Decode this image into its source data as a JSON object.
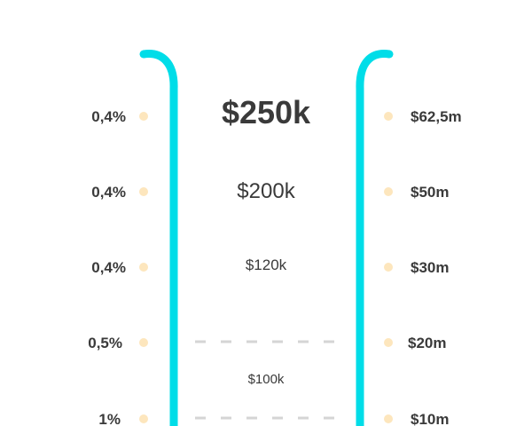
{
  "colors": {
    "rail": "#00dde8",
    "dot": "#fde6bd",
    "dash": "#d5d5d5",
    "text": "#3a3a3a"
  },
  "levels": [
    {
      "left": "0,4%",
      "right": "$62,5m"
    },
    {
      "left": "0,4%",
      "right": "$50m"
    },
    {
      "left": "0,4%",
      "right": "$30m"
    },
    {
      "left": "0,5%",
      "right": "$20m"
    },
    {
      "left": "1%",
      "right": "$10m"
    }
  ],
  "amounts": [
    "$250k",
    "$200k",
    "$120k",
    "$100k"
  ]
}
